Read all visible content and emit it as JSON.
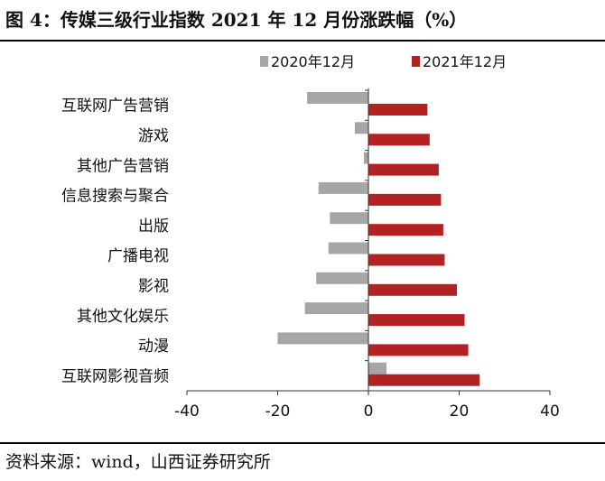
{
  "header": {
    "title": "图 4：传媒三级行业指数 2021 年 12 月份涨跌幅（%）"
  },
  "footer": {
    "source": "资料来源：wind，山西证券研究所"
  },
  "colors": {
    "series_2020": "#a6a6a6",
    "series_2021": "#b22222",
    "axis": "#333333"
  },
  "chart_data": {
    "type": "bar",
    "orientation": "horizontal",
    "title": "",
    "xlabel": "",
    "ylabel": "",
    "xlim": [
      -40,
      40
    ],
    "xticks": [
      -40,
      -20,
      0,
      20,
      40
    ],
    "grid": false,
    "legend_position": "top",
    "categories": [
      "互联网广告营销",
      "游戏",
      "其他广告营销",
      "信息搜索与聚合",
      "出版",
      "广播电视",
      "影视",
      "其他文化娱乐",
      "动漫",
      "互联网影视音频"
    ],
    "series": [
      {
        "name": "2020年12月",
        "color": "#a6a6a6",
        "values": [
          -13.5,
          -3.0,
          -1.0,
          -11.0,
          -8.5,
          -8.8,
          -11.5,
          -14.0,
          -20.0,
          4.0
        ]
      },
      {
        "name": "2021年12月",
        "color": "#b22222",
        "values": [
          13.0,
          13.5,
          15.5,
          16.0,
          16.5,
          16.8,
          19.5,
          21.2,
          22.0,
          24.5
        ]
      }
    ]
  }
}
